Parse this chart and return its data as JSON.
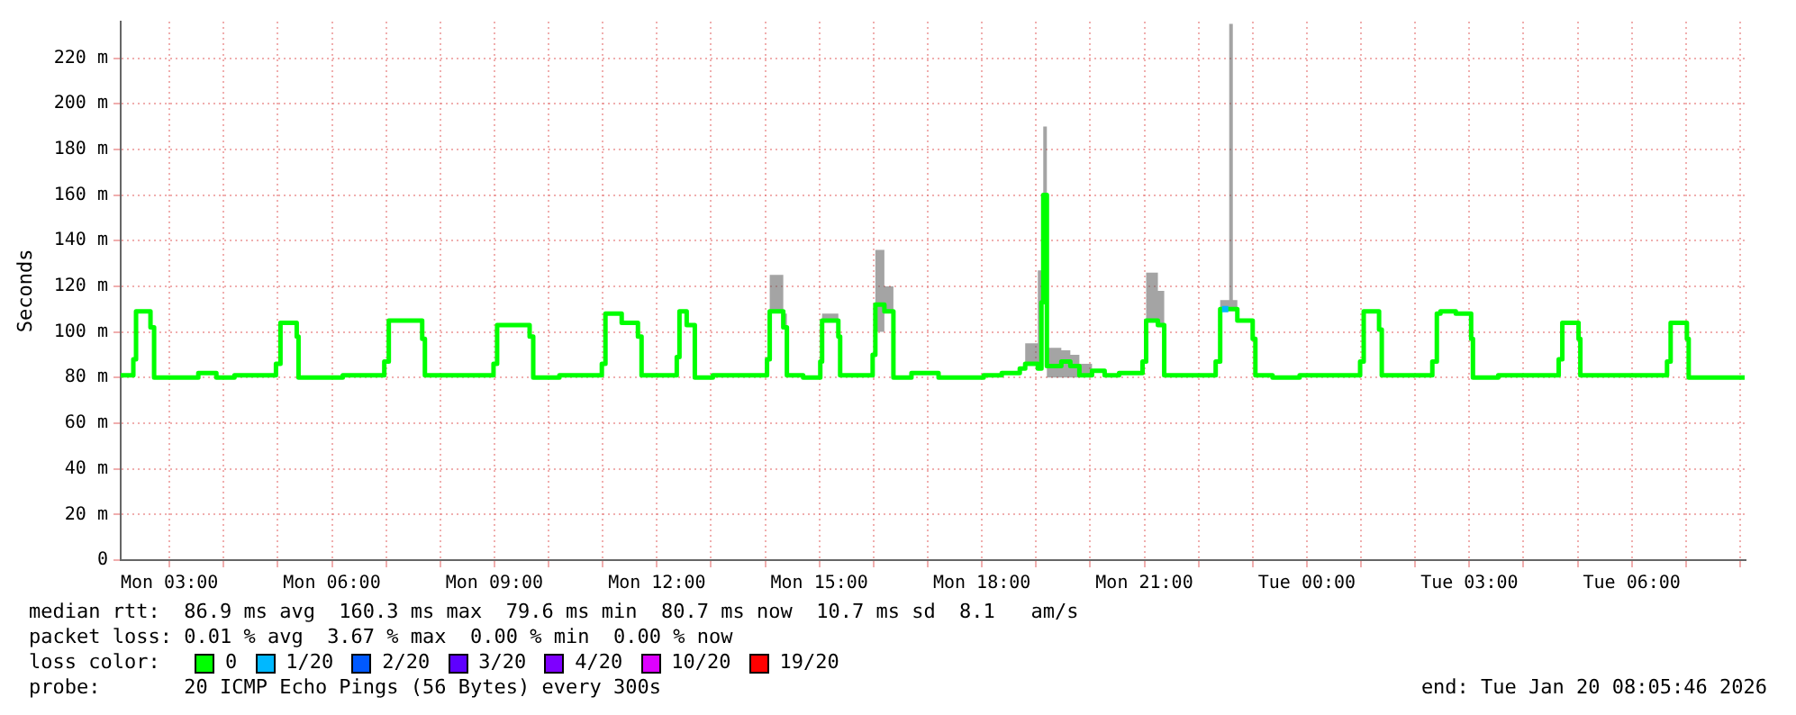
{
  "chart_data": {
    "type": "step",
    "ylabel": "Seconds",
    "legend_title": "loss color:",
    "legend": "bottom",
    "grid": true,
    "annotations": [
      "median rtt:  86.9 ms avg  160.3 ms max  79.6 ms min  80.7 ms now  10.7 ms sd  8.1   am/s",
      "packet loss: 0.01 % avg  3.67 % max  0.00 % min  0.00 % now",
      "probe:       20 ICMP Echo Pings (56 Bytes) every 300s",
      "end: Tue Jan 20 08:05:46 2026"
    ],
    "xlim": [
      "2026-01-19T02:06",
      "2026-01-20T08:06"
    ],
    "xticks": [
      {
        "value": "2026-01-19T03:00",
        "label": "Mon 03:00"
      },
      {
        "value": "2026-01-19T04:00",
        "label": null
      },
      {
        "value": "2026-01-19T05:00",
        "label": null
      },
      {
        "value": "2026-01-19T06:00",
        "label": "Mon 06:00"
      },
      {
        "value": "2026-01-19T07:00",
        "label": null
      },
      {
        "value": "2026-01-19T08:00",
        "label": null
      },
      {
        "value": "2026-01-19T09:00",
        "label": "Mon 09:00"
      },
      {
        "value": "2026-01-19T10:00",
        "label": null
      },
      {
        "value": "2026-01-19T11:00",
        "label": null
      },
      {
        "value": "2026-01-19T12:00",
        "label": "Mon 12:00"
      },
      {
        "value": "2026-01-19T13:00",
        "label": null
      },
      {
        "value": "2026-01-19T14:00",
        "label": null
      },
      {
        "value": "2026-01-19T15:00",
        "label": "Mon 15:00"
      },
      {
        "value": "2026-01-19T16:00",
        "label": null
      },
      {
        "value": "2026-01-19T17:00",
        "label": null
      },
      {
        "value": "2026-01-19T18:00",
        "label": "Mon 18:00"
      },
      {
        "value": "2026-01-19T19:00",
        "label": null
      },
      {
        "value": "2026-01-19T20:00",
        "label": null
      },
      {
        "value": "2026-01-19T21:00",
        "label": "Mon 21:00"
      },
      {
        "value": "2026-01-19T22:00",
        "label": null
      },
      {
        "value": "2026-01-19T23:00",
        "label": null
      },
      {
        "value": "2026-01-20T00:00",
        "label": "Tue 00:00"
      },
      {
        "value": "2026-01-20T01:00",
        "label": null
      },
      {
        "value": "2026-01-20T02:00",
        "label": null
      },
      {
        "value": "2026-01-20T03:00",
        "label": "Tue 03:00"
      },
      {
        "value": "2026-01-20T04:00",
        "label": null
      },
      {
        "value": "2026-01-20T05:00",
        "label": null
      },
      {
        "value": "2026-01-20T06:00",
        "label": "Tue 06:00"
      },
      {
        "value": "2026-01-20T07:00",
        "label": null
      },
      {
        "value": "2026-01-20T08:00",
        "label": null
      }
    ],
    "ylim": [
      0,
      236
    ],
    "yticks": [
      0,
      {
        "value": 20,
        "label": "20 m"
      },
      {
        "value": 40,
        "label": "40 m"
      },
      {
        "value": 60,
        "label": "60 m"
      },
      {
        "value": 80,
        "label": "80 m"
      },
      {
        "value": 100,
        "label": "100 m"
      },
      {
        "value": 120,
        "label": "120 m"
      },
      {
        "value": 140,
        "label": "140 m"
      },
      {
        "value": 160,
        "label": "160 m"
      },
      {
        "value": 180,
        "label": "180 m"
      },
      {
        "value": 200,
        "label": "200 m"
      },
      {
        "value": 220,
        "label": "220 m"
      }
    ],
    "series": [
      {
        "name": "0",
        "color": "#00ff00",
        "x": [
          "2026-01-19T02:06",
          "2026-01-19T02:20",
          "2026-01-19T02:23",
          "2026-01-19T02:39",
          "2026-01-19T02:43",
          "2026-01-19T03:32",
          "2026-01-19T03:52",
          "2026-01-19T04:12",
          "2026-01-19T04:58",
          "2026-01-19T05:03",
          "2026-01-19T05:21",
          "2026-01-19T05:23",
          "2026-01-19T06:12",
          "2026-01-19T06:58",
          "2026-01-19T07:03",
          "2026-01-19T07:40",
          "2026-01-19T07:43",
          "2026-01-19T08:59",
          "2026-01-19T09:03",
          "2026-01-19T09:39",
          "2026-01-19T09:43",
          "2026-01-19T10:12",
          "2026-01-19T10:59",
          "2026-01-19T11:03",
          "2026-01-19T11:21",
          "2026-01-19T11:39",
          "2026-01-19T11:43",
          "2026-01-19T12:22",
          "2026-01-19T12:25",
          "2026-01-19T12:33",
          "2026-01-19T12:42",
          "2026-01-19T13:02",
          "2026-01-19T14:02",
          "2026-01-19T14:05",
          "2026-01-19T14:20",
          "2026-01-19T14:24",
          "2026-01-19T14:42",
          "2026-01-19T15:01",
          "2026-01-19T15:03",
          "2026-01-19T15:21",
          "2026-01-19T15:23",
          "2026-01-19T15:59",
          "2026-01-19T16:02",
          "2026-01-19T16:12",
          "2026-01-19T16:22",
          "2026-01-19T16:42",
          "2026-01-19T17:12",
          "2026-01-19T18:02",
          "2026-01-19T18:22",
          "2026-01-19T18:42",
          "2026-01-19T18:48",
          "2026-01-19T19:02",
          "2026-01-19T19:06",
          "2026-01-19T19:08",
          "2026-01-19T19:12",
          "2026-01-19T19:28",
          "2026-01-19T19:38",
          "2026-01-19T19:48",
          "2026-01-19T20:02",
          "2026-01-19T20:16",
          "2026-01-19T20:32",
          "2026-01-19T20:58",
          "2026-01-19T21:02",
          "2026-01-19T21:15",
          "2026-01-19T21:22",
          "2026-01-19T22:19",
          "2026-01-19T22:24",
          "2026-01-19T22:34",
          "2026-01-19T22:38",
          "2026-01-19T22:43",
          "2026-01-19T23:00",
          "2026-01-19T23:03",
          "2026-01-19T23:22",
          "2026-01-19T23:52",
          "2026-01-20T00:59",
          "2026-01-20T01:03",
          "2026-01-20T01:20",
          "2026-01-20T01:23",
          "2026-01-20T02:19",
          "2026-01-20T02:24",
          "2026-01-20T02:28",
          "2026-01-20T02:45",
          "2026-01-20T03:02",
          "2026-01-20T03:04",
          "2026-01-20T03:32",
          "2026-01-20T04:39",
          "2026-01-20T04:43",
          "2026-01-20T05:01",
          "2026-01-20T05:03",
          "2026-01-20T06:39",
          "2026-01-20T06:43",
          "2026-01-20T07:01",
          "2026-01-20T07:03",
          "2026-01-20T08:05"
        ],
        "values": [
          81,
          88,
          109,
          102,
          80,
          82,
          80,
          81,
          86,
          104,
          98,
          80,
          81,
          87,
          105,
          97,
          81,
          86,
          103,
          98,
          80,
          81,
          86,
          108,
          104,
          98,
          81,
          89,
          109,
          103,
          80,
          81,
          88,
          109,
          102,
          81,
          80,
          87,
          105,
          98,
          81,
          90,
          112,
          109,
          80,
          82,
          80,
          81,
          82,
          84,
          86,
          84,
          113,
          160,
          85,
          87,
          85,
          81,
          83,
          81,
          82,
          87,
          105,
          103,
          81,
          87,
          110,
          110,
          110,
          105,
          97,
          81,
          80,
          81,
          87,
          109,
          101,
          81,
          87,
          108,
          109,
          108,
          97,
          80,
          81,
          88,
          104,
          97,
          81,
          87,
          104,
          97,
          80,
          80
        ],
        "upper": [
          81,
          88,
          109,
          102,
          80,
          82,
          80,
          81,
          86,
          104,
          98,
          80,
          81,
          87,
          105,
          97,
          81,
          86,
          103,
          98,
          80,
          81,
          86,
          108,
          104,
          98,
          81,
          89,
          109,
          103,
          80,
          81,
          88,
          125,
          108,
          81,
          80,
          87,
          108,
          98,
          81,
          90,
          136,
          120,
          80,
          82,
          80,
          81,
          82,
          84,
          95,
          127,
          140,
          190,
          93,
          92,
          90,
          86,
          83,
          81,
          82,
          87,
          126,
          118,
          81,
          87,
          114,
          235,
          114,
          105,
          97,
          81,
          80,
          81,
          87,
          109,
          101,
          81,
          87,
          108,
          109,
          108,
          97,
          80,
          81,
          88,
          104,
          97,
          81,
          87,
          104,
          97,
          80,
          80
        ],
        "lower": [
          81,
          88,
          109,
          102,
          80,
          82,
          80,
          81,
          86,
          104,
          98,
          80,
          81,
          87,
          105,
          97,
          81,
          86,
          103,
          98,
          80,
          81,
          86,
          108,
          104,
          98,
          81,
          89,
          109,
          103,
          80,
          81,
          88,
          109,
          102,
          81,
          80,
          87,
          105,
          98,
          81,
          90,
          100,
          109,
          80,
          82,
          80,
          81,
          82,
          84,
          86,
          84,
          113,
          113,
          80,
          80,
          80,
          81,
          83,
          81,
          82,
          87,
          105,
          103,
          81,
          87,
          110,
          110,
          110,
          105,
          97,
          81,
          80,
          81,
          87,
          109,
          101,
          81,
          87,
          108,
          109,
          108,
          97,
          80,
          81,
          88,
          104,
          97,
          81,
          87,
          104,
          97,
          80,
          80
        ]
      },
      {
        "name": "1/20",
        "color": "#00b8ff",
        "x": [
          "2026-01-19T22:26",
          "2026-01-19T22:33"
        ],
        "values": [
          110,
          110
        ]
      },
      {
        "name": "2/20",
        "color": "#0059ff"
      },
      {
        "name": "3/20",
        "color": "#5e00ff"
      },
      {
        "name": "4/20",
        "color": "#7e00ff"
      },
      {
        "name": "10/20",
        "color": "#dd00ff"
      },
      {
        "name": "19/20",
        "color": "#ff0000"
      }
    ]
  }
}
